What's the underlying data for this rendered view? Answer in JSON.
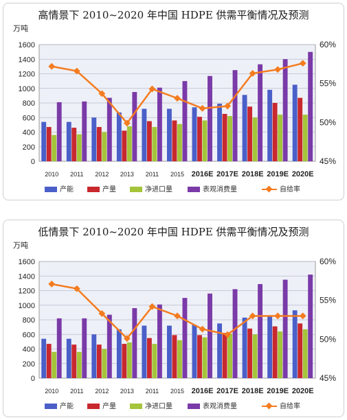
{
  "chart_data": [
    {
      "type": "bar",
      "title": "高情景下 2010~2020 年中国 HDPE 供需平衡情况及预测",
      "ylabel": "万吨",
      "ylim": [
        0,
        1600
      ],
      "y2lim": [
        45,
        60
      ],
      "yticks": [
        "0",
        "200",
        "400",
        "600",
        "800",
        "1000",
        "1200",
        "1400",
        "1600"
      ],
      "y2ticks": [
        "45%",
        "50%",
        "55%",
        "60%"
      ],
      "categories": [
        "2010",
        "2011",
        "2012",
        "2013",
        "2011",
        "2015",
        "2016E",
        "2017E",
        "2018E",
        "2019E",
        "2020E"
      ],
      "series": [
        {
          "name": "产能",
          "type": "bar",
          "color": "#4a5fc8",
          "values": [
            540,
            540,
            600,
            670,
            720,
            720,
            740,
            790,
            910,
            980,
            1050
          ]
        },
        {
          "name": "产量",
          "type": "bar",
          "color": "#c8282e",
          "values": [
            470,
            460,
            470,
            420,
            550,
            560,
            610,
            650,
            750,
            800,
            870
          ]
        },
        {
          "name": "净进口量",
          "type": "bar",
          "color": "#a5c43a",
          "values": [
            360,
            370,
            400,
            480,
            470,
            510,
            560,
            620,
            600,
            640,
            640
          ]
        },
        {
          "name": "表观消费量",
          "type": "bar",
          "color": "#7a3aa8",
          "values": [
            810,
            820,
            870,
            950,
            1010,
            1100,
            1170,
            1250,
            1330,
            1400,
            1500
          ]
        },
        {
          "name": "自给率",
          "type": "line",
          "axis": "right",
          "color": "#f47c20",
          "values": [
            57.2,
            56.6,
            53.7,
            49.9,
            54.3,
            53.1,
            51.8,
            52.1,
            56.3,
            56.8,
            57.6
          ]
        }
      ],
      "grid": true,
      "legend": "bottom"
    },
    {
      "type": "bar",
      "title": "低情景下 2010~2020 年中国 HDPE 供需平衡情况及预测",
      "ylabel": "万吨",
      "ylim": [
        0,
        1600
      ],
      "y2lim": [
        45,
        60
      ],
      "yticks": [
        "0",
        "200",
        "400",
        "600",
        "800",
        "1000",
        "1200",
        "1400",
        "1600"
      ],
      "y2ticks": [
        "45%",
        "50%",
        "55%",
        "60%"
      ],
      "categories": [
        "2010",
        "2011",
        "2012",
        "2013",
        "2011",
        "2015",
        "2016E",
        "2017E",
        "2018E",
        "2019E",
        "2020E"
      ],
      "series": [
        {
          "name": "产能",
          "type": "bar",
          "color": "#4a5fc8",
          "values": [
            540,
            540,
            600,
            670,
            720,
            720,
            730,
            750,
            830,
            860,
            930
          ]
        },
        {
          "name": "产量",
          "type": "bar",
          "color": "#c8282e",
          "values": [
            470,
            460,
            460,
            470,
            550,
            590,
            590,
            620,
            680,
            710,
            750
          ]
        },
        {
          "name": "净进口量",
          "type": "bar",
          "color": "#a5c43a",
          "values": [
            360,
            360,
            400,
            490,
            470,
            520,
            560,
            610,
            600,
            640,
            670
          ]
        },
        {
          "name": "表观消费量",
          "type": "bar",
          "color": "#7a3aa8",
          "values": [
            820,
            820,
            870,
            960,
            1010,
            1100,
            1160,
            1220,
            1290,
            1350,
            1420
          ]
        },
        {
          "name": "自给率",
          "type": "line",
          "axis": "right",
          "color": "#f47c20",
          "values": [
            57.1,
            56.5,
            53.3,
            50.1,
            54.2,
            53.0,
            51.3,
            50.6,
            53.0,
            53.0,
            53.0
          ]
        }
      ],
      "grid": true,
      "legend": "bottom"
    }
  ]
}
